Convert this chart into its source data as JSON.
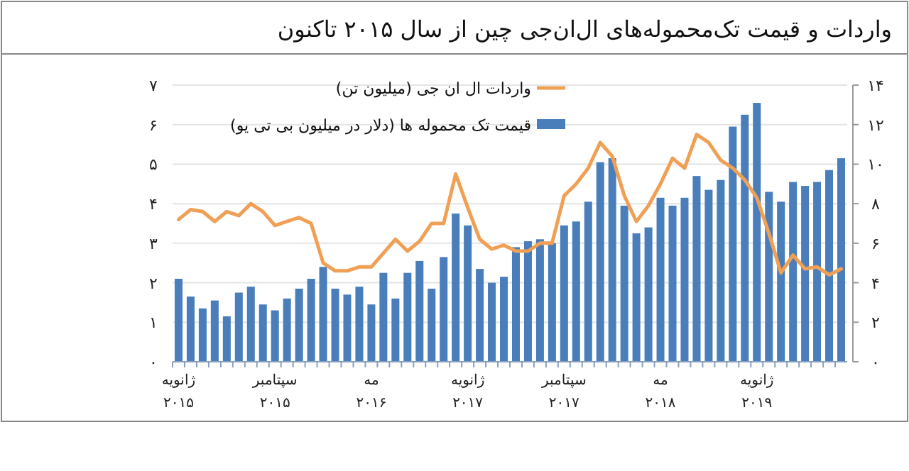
{
  "chart_data": {
    "type": "bar",
    "title": "واردات و   قیمت تک‌محموله‌های ال‌ان‌جی چین از سال ۲۰۱۵ تاکنون",
    "categories": [
      "ژانویه ۲۰۱۵",
      null,
      null,
      null,
      null,
      null,
      null,
      null,
      "سپتامبر ۲۰۱۵",
      null,
      null,
      null,
      null,
      null,
      null,
      null,
      "مه ۲۰۱۶",
      null,
      null,
      null,
      null,
      null,
      null,
      null,
      "ژانویه ۲۰۱۷",
      null,
      null,
      null,
      null,
      null,
      null,
      null,
      "سپتامبر ۲۰۱۷",
      null,
      null,
      null,
      null,
      null,
      null,
      null,
      "مه ۲۰۱۸",
      null,
      null,
      null,
      null,
      null,
      null,
      null,
      "ژانویه ۲۰۱۹",
      null,
      null,
      null,
      null,
      null,
      null,
      null
    ],
    "series": [
      {
        "name": "قیمت تک محموله ها  (دلار در میلیون بی تی یو)",
        "axis": "y2",
        "color": "#4a7ebb",
        "values": [
          4.2,
          3.3,
          2.7,
          3.1,
          2.3,
          3.5,
          3.8,
          2.9,
          2.6,
          3.2,
          3.7,
          4.2,
          4.8,
          3.7,
          3.4,
          3.8,
          2.9,
          4.5,
          3.2,
          4.5,
          5.1,
          3.7,
          5.3,
          7.5,
          6.9,
          4.7,
          4.0,
          4.3,
          5.8,
          6.1,
          6.2,
          6.0,
          6.9,
          7.1,
          8.1,
          10.1,
          10.3,
          7.9,
          6.5,
          6.8,
          8.3,
          7.9,
          8.3,
          9.4,
          8.7,
          9.2,
          11.9,
          12.5,
          13.1,
          8.6,
          8.1,
          9.1,
          8.9,
          9.1,
          9.7,
          10.3
        ]
      },
      {
        "name": "واردات ال ان جی (میلیون تن)",
        "type": "line",
        "axis": "y",
        "color": "#f0a055",
        "values": [
          3.6,
          3.85,
          3.8,
          3.55,
          3.8,
          3.7,
          4.0,
          3.8,
          3.45,
          3.55,
          3.65,
          3.5,
          2.5,
          2.3,
          2.3,
          2.4,
          2.4,
          2.75,
          3.1,
          2.8,
          3.05,
          3.5,
          3.5,
          4.75,
          3.9,
          3.1,
          2.85,
          2.95,
          2.8,
          2.8,
          3.0,
          3.0,
          4.2,
          4.5,
          4.9,
          5.55,
          5.2,
          4.2,
          3.55,
          3.95,
          4.5,
          5.15,
          4.9,
          5.75,
          5.55,
          5.1,
          4.9,
          4.6,
          4.15,
          3.25,
          2.25,
          2.7,
          2.35,
          2.4,
          2.2,
          2.35
        ]
      }
    ],
    "ylim": [
      0,
      7
    ],
    "yticks": [
      {
        "value": 0,
        "label": "۰"
      },
      {
        "value": 1,
        "label": "۱"
      },
      {
        "value": 2,
        "label": "۲"
      },
      {
        "value": 3,
        "label": "۳"
      },
      {
        "value": 4,
        "label": "۴"
      },
      {
        "value": 5,
        "label": "۵"
      },
      {
        "value": 6,
        "label": "۶"
      },
      {
        "value": 7,
        "label": "۷"
      }
    ],
    "y2lim": [
      0,
      14
    ],
    "y2ticks": [
      {
        "value": 0,
        "label": "۰"
      },
      {
        "value": 2,
        "label": "۲"
      },
      {
        "value": 4,
        "label": "۴"
      },
      {
        "value": 6,
        "label": "۶"
      },
      {
        "value": 8,
        "label": "۸"
      },
      {
        "value": 10,
        "label": "۱۰"
      },
      {
        "value": 12,
        "label": "۱۲"
      },
      {
        "value": 14,
        "label": "۱۴"
      }
    ],
    "grid": "y",
    "legend": "top left",
    "line_style": "solid",
    "marker": "none"
  }
}
